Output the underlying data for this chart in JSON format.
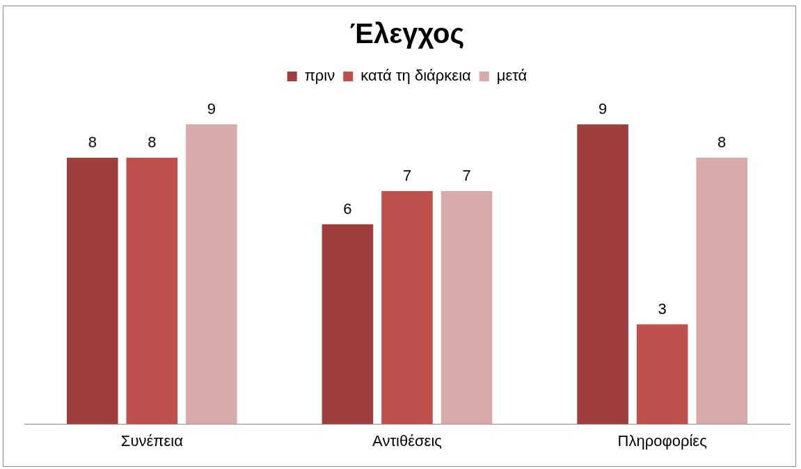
{
  "chart_data": {
    "type": "bar",
    "title": "Έλεγχος",
    "categories": [
      "Συνέπεια",
      "Αντιθέσεις",
      "Πληροφορίες"
    ],
    "series": [
      {
        "name": "πριν",
        "color": "#9e3f3d",
        "values": [
          8,
          6,
          9
        ]
      },
      {
        "name": "κατά τη διάρκεια",
        "color": "#c0504d",
        "values": [
          8,
          7,
          3
        ]
      },
      {
        "name": "μετά",
        "color": "#d9aaaa",
        "values": [
          9,
          7,
          8
        ]
      }
    ],
    "data_labels": true,
    "legend": "top",
    "grid": false
  }
}
